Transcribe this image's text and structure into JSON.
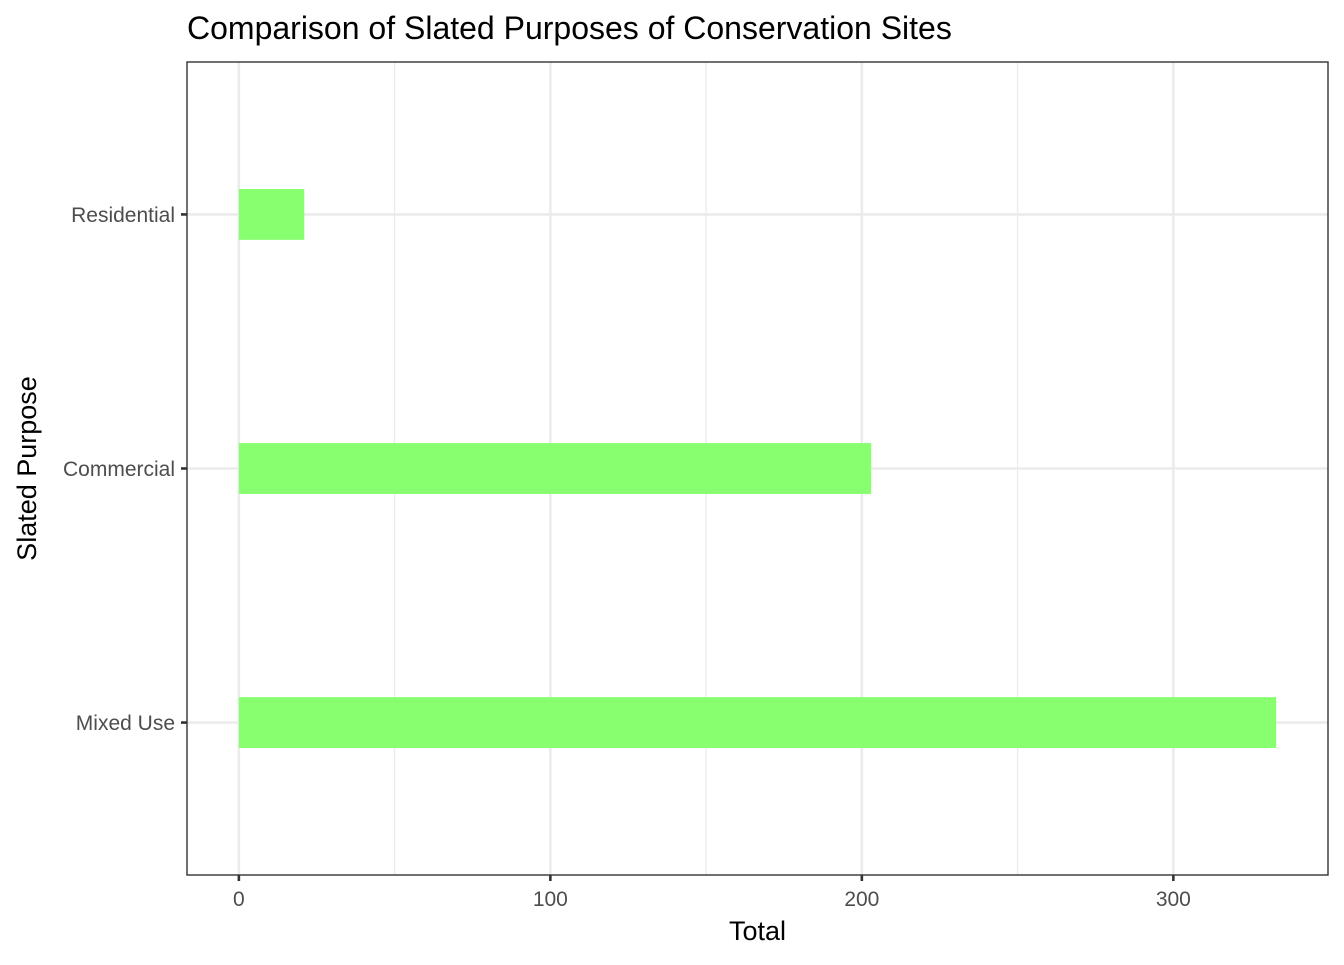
{
  "chart_data": {
    "type": "bar",
    "orientation": "horizontal",
    "title": "Comparison of Slated Purposes of Conservation Sites",
    "xlabel": "Total",
    "ylabel": "Slated Purpose",
    "categories": [
      "Mixed Use",
      "Commercial",
      "Residential"
    ],
    "values": [
      333,
      203,
      21
    ],
    "xlim": [
      -16.65,
      349.65
    ],
    "x_ticks": [
      0,
      100,
      200,
      300
    ],
    "x_minor_ticks": [
      50,
      150,
      250
    ],
    "grid": true,
    "bar_color": "#87ff6f",
    "theme": "black-and-white"
  }
}
